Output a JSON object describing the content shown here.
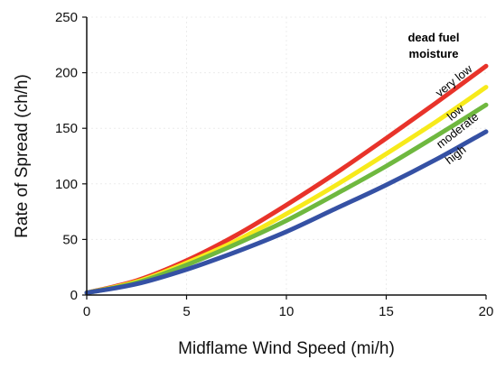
{
  "chart_data": {
    "type": "line",
    "xlabel": "Midflame Wind Speed (mi/h)",
    "ylabel": "Rate of Spread (ch/h)",
    "xlim": [
      0,
      20
    ],
    "ylim": [
      0,
      250
    ],
    "xticks": [
      "0",
      "5",
      "10",
      "15",
      "20"
    ],
    "yticks": [
      "0",
      "50",
      "100",
      "150",
      "200",
      "250"
    ],
    "grid": false,
    "legend_title_lines": [
      "dead fuel",
      "moisture"
    ],
    "legend_placement": "top-right",
    "x": [
      0,
      2.5,
      5,
      7.5,
      10,
      12.5,
      15,
      17.5,
      20
    ],
    "series": [
      {
        "name": "very low",
        "color": "#e8332a",
        "values": [
          2,
          13,
          31,
          54,
          81,
          110,
          141,
          173,
          206
        ]
      },
      {
        "name": "low",
        "color": "#f7ea1b",
        "values": [
          2,
          12,
          29,
          49,
          73,
          99,
          127,
          156,
          187
        ]
      },
      {
        "name": "moderate",
        "color": "#6fb83f",
        "values": [
          2,
          11,
          27,
          46,
          67,
          91,
          116,
          143,
          171
        ]
      },
      {
        "name": "high",
        "color": "#3551a4",
        "values": [
          2,
          10,
          23,
          39,
          57,
          78,
          99,
          122,
          147
        ]
      }
    ]
  }
}
